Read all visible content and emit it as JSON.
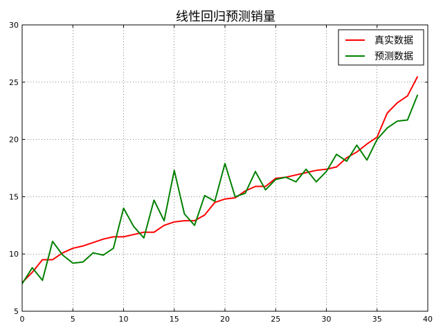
{
  "chart_data": {
    "type": "line",
    "title": "线性回归预测销量",
    "xlabel": "",
    "ylabel": "",
    "xlim": [
      0,
      40
    ],
    "ylim": [
      5,
      30
    ],
    "x_ticks": [
      0,
      5,
      10,
      15,
      20,
      25,
      30,
      35,
      40
    ],
    "y_ticks": [
      5,
      10,
      15,
      20,
      25,
      30
    ],
    "grid": true,
    "legend_position": "top-right",
    "x": [
      0,
      1,
      2,
      3,
      4,
      5,
      6,
      7,
      8,
      9,
      10,
      11,
      12,
      13,
      14,
      15,
      16,
      17,
      18,
      19,
      20,
      21,
      22,
      23,
      24,
      25,
      26,
      27,
      28,
      29,
      30,
      31,
      32,
      33,
      34,
      35,
      36,
      37,
      38,
      39
    ],
    "series": [
      {
        "name": "真实数据",
        "color": "#ff0000",
        "values": [
          7.5,
          8.4,
          9.5,
          9.5,
          10.1,
          10.5,
          10.7,
          11.0,
          11.3,
          11.5,
          11.5,
          11.7,
          11.9,
          11.9,
          12.5,
          12.8,
          12.9,
          12.9,
          13.4,
          14.5,
          14.8,
          14.9,
          15.5,
          15.9,
          15.9,
          16.6,
          16.7,
          16.9,
          17.1,
          17.3,
          17.4,
          17.6,
          18.4,
          18.9,
          19.6,
          20.2,
          22.3,
          23.2,
          23.8,
          25.5
        ]
      },
      {
        "name": "预测数据",
        "color": "#008000",
        "values": [
          7.4,
          8.8,
          7.7,
          11.1,
          9.9,
          9.2,
          9.3,
          10.1,
          9.9,
          10.5,
          14.0,
          12.4,
          11.4,
          14.7,
          12.9,
          17.3,
          13.5,
          12.5,
          15.1,
          14.6,
          17.9,
          15.0,
          15.3,
          17.2,
          15.6,
          16.5,
          16.7,
          16.3,
          17.4,
          16.3,
          17.2,
          18.7,
          18.1,
          19.5,
          18.2,
          20.0,
          21.0,
          21.6,
          21.7,
          23.9
        ]
      }
    ]
  }
}
